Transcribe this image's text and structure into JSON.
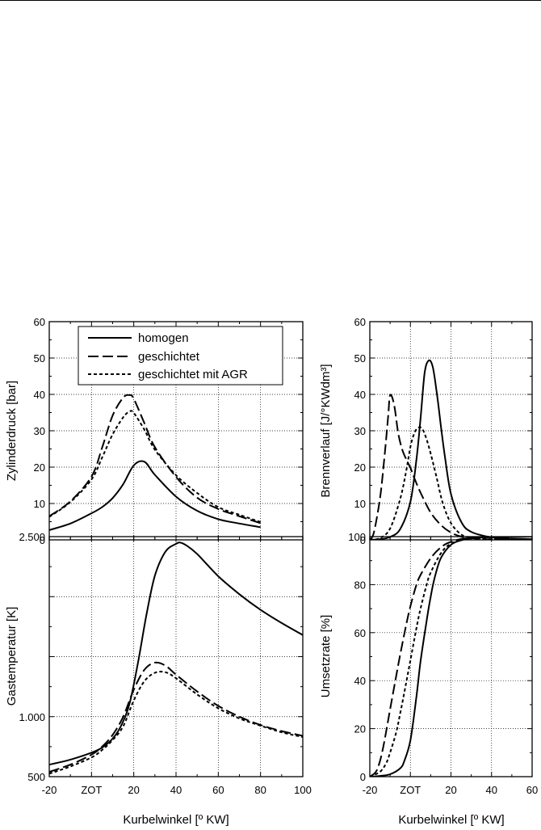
{
  "chart_data": [
    {
      "id": "cylinder-pressure",
      "type": "line",
      "xlabel": "",
      "ylabel": "Zylinderdruck [bar]",
      "xlim": [
        -20,
        100
      ],
      "ylim": [
        0,
        60
      ],
      "xticks": [
        -20,
        0,
        20,
        40,
        60,
        80,
        100
      ],
      "xtick_labels": [],
      "yticks": [
        0,
        10,
        20,
        30,
        40,
        50,
        60
      ],
      "ytick_labels": [
        "0",
        "10",
        "20",
        "30",
        "40",
        "50",
        "60"
      ],
      "grid": true,
      "legend": "top-left",
      "series": [
        {
          "name": "homogen",
          "dash": "solid",
          "x": [
            -20,
            -10,
            0,
            5,
            10,
            15,
            20,
            25,
            30,
            40,
            50,
            60,
            70,
            80
          ],
          "y": [
            2.7,
            4.5,
            7.3,
            9.0,
            11.5,
            15.3,
            20.5,
            21.5,
            17.9,
            11.9,
            8.0,
            5.7,
            4.5,
            3.5
          ]
        },
        {
          "name": "geschichtet",
          "dash": "long",
          "x": [
            -20,
            -10,
            0,
            5,
            10,
            15,
            18,
            20,
            25,
            30,
            40,
            50,
            60,
            70,
            80
          ],
          "y": [
            6.5,
            10.6,
            17.4,
            25.3,
            34.2,
            39.1,
            39.8,
            38.8,
            32.1,
            25.5,
            17.3,
            11.6,
            8.5,
            6.5,
            4.6
          ]
        },
        {
          "name": "geschichtet mit AGR",
          "dash": "short",
          "x": [
            -20,
            -10,
            0,
            5,
            10,
            15,
            18,
            20,
            25,
            30,
            40,
            50,
            60,
            70,
            80
          ],
          "y": [
            6.3,
            10.4,
            16.6,
            22.6,
            29.0,
            33.7,
            35.3,
            34.9,
            30.3,
            24.8,
            17.8,
            12.9,
            9.0,
            6.9,
            4.9
          ]
        }
      ]
    },
    {
      "id": "heat-release",
      "type": "line",
      "xlabel": "",
      "ylabel": "Brennverlauf [J/°KWdm³]",
      "xlim": [
        -20,
        60
      ],
      "ylim": [
        0,
        60
      ],
      "xticks": [
        -20,
        0,
        20,
        40,
        60
      ],
      "xtick_labels": [],
      "yticks": [
        0,
        10,
        20,
        30,
        40,
        50,
        60
      ],
      "ytick_labels": [
        "0",
        "10",
        "20",
        "30",
        "40",
        "50",
        "60"
      ],
      "grid": true,
      "series": [
        {
          "name": "homogen",
          "dash": "solid",
          "x": [
            -20,
            -15,
            -10,
            -5,
            0,
            3,
            5,
            7,
            9,
            11,
            13,
            15,
            17,
            20,
            25,
            30,
            40,
            50,
            60
          ],
          "y": [
            0,
            0.2,
            0.8,
            3.0,
            10.5,
            22.2,
            33.3,
            45.8,
            49.3,
            47.6,
            40.5,
            31.5,
            22.9,
            12.6,
            5.0,
            2.2,
            0.7,
            0.3,
            0.2
          ]
        },
        {
          "name": "geschichtet",
          "dash": "long",
          "x": [
            -20,
            -18,
            -15,
            -13,
            -11,
            -10,
            -8,
            -6,
            -4,
            -2,
            0,
            2,
            5,
            10,
            15,
            20,
            25,
            30,
            40,
            60
          ],
          "y": [
            0,
            2.0,
            11.4,
            21.6,
            33.7,
            39.8,
            37.1,
            29.3,
            24.8,
            22.1,
            19.8,
            16.9,
            13.0,
            7.5,
            4.1,
            2.0,
            0.9,
            0.5,
            0.1,
            0
          ]
        },
        {
          "name": "geschichtet mit AGR",
          "dash": "short",
          "x": [
            -20,
            -15,
            -10,
            -5,
            -2,
            0,
            2,
            4,
            6,
            8,
            10,
            13,
            16,
            20,
            25,
            30,
            40,
            60
          ],
          "y": [
            0,
            0.5,
            3.1,
            11.3,
            19.1,
            25.6,
            29.4,
            30.9,
            30.4,
            27.6,
            23.7,
            17.0,
            10.0,
            4.6,
            1.5,
            0.6,
            0.2,
            0
          ]
        }
      ]
    },
    {
      "id": "gas-temperature",
      "type": "line",
      "xlabel": "Kurbelwinkel [º KW]",
      "ylabel": "Gastemperatur [K]",
      "xlim": [
        -20,
        100
      ],
      "ylim": [
        500,
        2500
      ],
      "xticks": [
        -20,
        0,
        20,
        40,
        60,
        80,
        100
      ],
      "xtick_labels": [
        "-20",
        "ZOT",
        "20",
        "40",
        "60",
        "80",
        "100"
      ],
      "yticks": [
        500,
        1000,
        1500,
        2000,
        2500
      ],
      "ytick_labels": [
        "500",
        "1.000",
        "",
        "",
        "2.500"
      ],
      "grid": true,
      "series": [
        {
          "name": "homogen",
          "dash": "solid",
          "x": [
            -20,
            -10,
            0,
            5,
            10,
            14,
            18,
            22,
            26,
            30,
            35,
            40,
            42,
            45,
            50,
            60,
            70,
            80,
            90,
            100
          ],
          "y": [
            600,
            642,
            700,
            742,
            817,
            925,
            1108,
            1450,
            1850,
            2175,
            2375,
            2440,
            2450,
            2425,
            2355,
            2170,
            2020,
            1890,
            1780,
            1680
          ]
        },
        {
          "name": "geschichtet",
          "dash": "long",
          "x": [
            -20,
            -10,
            0,
            5,
            10,
            15,
            20,
            25,
            30,
            35,
            40,
            50,
            60,
            70,
            80,
            90,
            100
          ],
          "y": [
            540,
            600,
            683,
            750,
            848,
            1000,
            1225,
            1390,
            1450,
            1425,
            1350,
            1210,
            1090,
            1000,
            930,
            880,
            840
          ]
        },
        {
          "name": "geschichtet mit AGR",
          "dash": "short",
          "x": [
            -20,
            -10,
            0,
            5,
            10,
            15,
            20,
            25,
            30,
            35,
            40,
            50,
            60,
            70,
            80,
            90,
            100
          ],
          "y": [
            525,
            585,
            660,
            722,
            805,
            920,
            1135,
            1295,
            1365,
            1370,
            1320,
            1185,
            1070,
            985,
            925,
            870,
            830
          ]
        }
      ]
    },
    {
      "id": "conversion-rate",
      "type": "line",
      "xlabel": "Kurbelwinkel [º KW]",
      "ylabel": "Umsetzrate [%]",
      "xlim": [
        -20,
        60
      ],
      "ylim": [
        0,
        100
      ],
      "xticks": [
        -20,
        0,
        20,
        40,
        60
      ],
      "xtick_labels": [
        "-20",
        "ZOT",
        "20",
        "40",
        "60"
      ],
      "yticks": [
        0,
        20,
        40,
        60,
        80,
        100
      ],
      "ytick_labels": [
        "0",
        "20",
        "40",
        "60",
        "80",
        "100"
      ],
      "grid": true,
      "series": [
        {
          "name": "homogen",
          "dash": "solid",
          "x": [
            -20,
            -15,
            -10,
            -5,
            -3,
            0,
            3,
            5,
            8,
            10,
            12,
            15,
            20,
            25,
            30,
            40,
            60
          ],
          "y": [
            0,
            0.3,
            1.0,
            3.5,
            6.5,
            15.2,
            33.5,
            48.0,
            65.0,
            75.0,
            83.0,
            91.0,
            96.6,
            98.5,
            99.3,
            99.8,
            100
          ]
        },
        {
          "name": "geschichtet",
          "dash": "long",
          "x": [
            -20,
            -17,
            -15,
            -13,
            -10,
            -7,
            -5,
            -2,
            0,
            3,
            5,
            10,
            15,
            20,
            30,
            60
          ],
          "y": [
            0,
            2.0,
            6.5,
            14.0,
            28.0,
            42.0,
            51.0,
            63.5,
            71.0,
            80.0,
            84.0,
            91.0,
            95.5,
            97.8,
            99.5,
            100
          ]
        },
        {
          "name": "geschichtet mit AGR",
          "dash": "short",
          "x": [
            -20,
            -15,
            -12,
            -10,
            -7,
            -5,
            -3,
            0,
            3,
            5,
            8,
            10,
            15,
            20,
            30,
            60
          ],
          "y": [
            0,
            2.0,
            5.5,
            10.0,
            18.5,
            26.5,
            35.0,
            48.5,
            62.0,
            70.0,
            80.0,
            85.0,
            93.0,
            97.0,
            99.5,
            100
          ]
        }
      ]
    }
  ]
}
